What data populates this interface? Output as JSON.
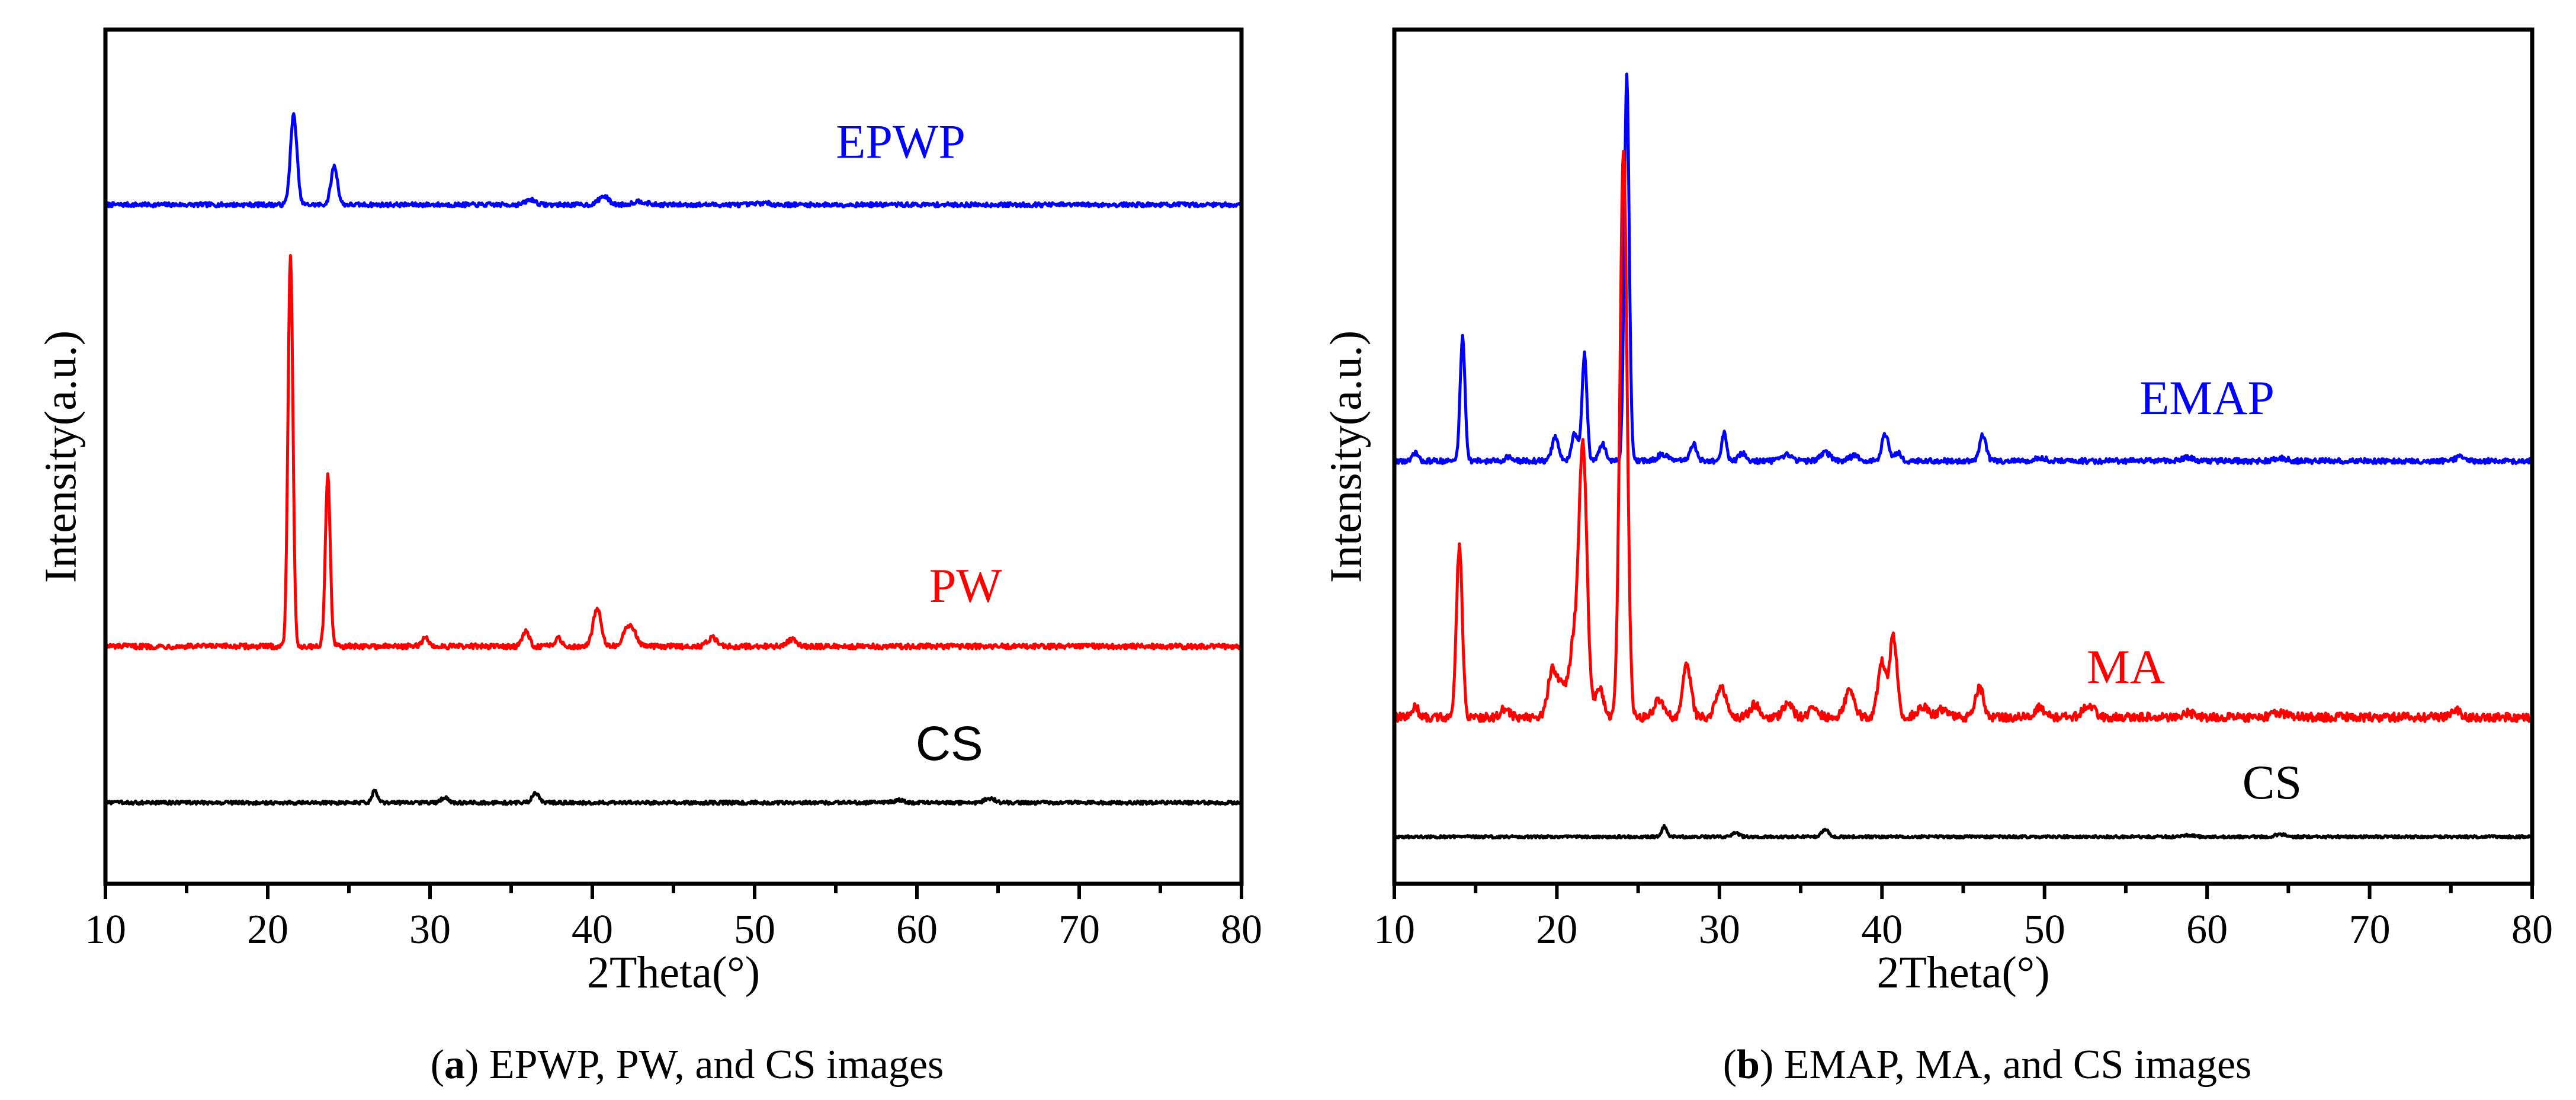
{
  "chart_data": [
    {
      "type": "line",
      "panel": "a",
      "caption_letter": "a",
      "caption_rest": " EPWP, PW, and CS images",
      "xlabel": "2Theta(°)",
      "ylabel": "Intensity(a.u.)",
      "xlim": [
        10,
        80
      ],
      "x_ticks": [
        "10",
        "20",
        "30",
        "40",
        "50",
        "60",
        "70",
        "80"
      ],
      "ylim": [
        0,
        100
      ],
      "y_ticks_shown": false,
      "series": [
        {
          "name": "EPWP",
          "color": "#0000ff",
          "label_font": "serif",
          "baseline": 79.5,
          "label_x": 59,
          "label_y": 85,
          "peaks": [
            [
              21.6,
              10.5,
              0.2
            ],
            [
              24.1,
              4.5,
              0.2
            ],
            [
              36.2,
              0.6,
              0.3
            ],
            [
              40.7,
              1.0,
              0.3
            ],
            [
              42.9,
              0.4,
              0.4
            ],
            [
              50.5,
              0.2,
              0.4
            ]
          ],
          "noise": 0.25
        },
        {
          "name": "PW",
          "color": "#ff0000",
          "label_font": "serif",
          "baseline": 27.8,
          "label_x": 63,
          "label_y": 33,
          "peaks": [
            [
              21.4,
              46,
              0.15
            ],
            [
              23.7,
              20,
              0.15
            ],
            [
              29.7,
              1.0,
              0.2
            ],
            [
              35.9,
              1.8,
              0.2
            ],
            [
              37.9,
              1.0,
              0.2
            ],
            [
              40.3,
              4.5,
              0.25
            ],
            [
              42.3,
              2.5,
              0.35
            ],
            [
              47.4,
              1.0,
              0.3
            ],
            [
              52.3,
              0.8,
              0.3
            ]
          ],
          "noise": 0.3
        },
        {
          "name": "CS",
          "color": "#000000",
          "label_font": "sans",
          "baseline": 9.5,
          "label_x": 62,
          "label_y": 14.5,
          "peaks": [
            [
              26.6,
              1.5,
              0.15
            ],
            [
              30.9,
              0.6,
              0.2
            ],
            [
              36.5,
              1.2,
              0.2
            ],
            [
              58.9,
              0.3,
              0.3
            ],
            [
              64.5,
              0.5,
              0.3
            ]
          ],
          "noise": 0.2
        }
      ]
    },
    {
      "type": "line",
      "panel": "b",
      "caption_letter": "b",
      "caption_rest": " EMAP, MA, and CS images",
      "xlabel": "2Theta(°)",
      "ylabel": "Intensity(a.u.)",
      "xlim": [
        10,
        80
      ],
      "x_ticks": [
        "10",
        "20",
        "30",
        "40",
        "50",
        "60",
        "70",
        "80"
      ],
      "ylim": [
        0,
        100
      ],
      "y_ticks_shown": false,
      "series": [
        {
          "name": "EMAP",
          "color": "#0000ff",
          "label_font": "serif",
          "baseline": 49.5,
          "label_x": 60,
          "label_y": 55,
          "peaks": [
            [
              11.3,
              1.0,
              0.15
            ],
            [
              14.2,
              14.5,
              0.15
            ],
            [
              17.0,
              0.5,
              0.2
            ],
            [
              19.9,
              2.8,
              0.2
            ],
            [
              21.1,
              3.2,
              0.2
            ],
            [
              21.7,
              12.5,
              0.15
            ],
            [
              22.8,
              2.0,
              0.2
            ],
            [
              24.3,
              45,
              0.15
            ],
            [
              26.5,
              0.8,
              0.3
            ],
            [
              28.4,
              2.0,
              0.2
            ],
            [
              30.3,
              3.3,
              0.15
            ],
            [
              31.4,
              0.9,
              0.2
            ],
            [
              34.2,
              0.7,
              0.3
            ],
            [
              36.5,
              1.0,
              0.3
            ],
            [
              38.3,
              0.6,
              0.3
            ],
            [
              40.2,
              3.2,
              0.2
            ],
            [
              41.0,
              1.0,
              0.2
            ],
            [
              46.2,
              3.0,
              0.2
            ],
            [
              49.8,
              0.4,
              0.3
            ],
            [
              58.8,
              0.4,
              0.4
            ],
            [
              64.5,
              0.3,
              0.4
            ],
            [
              75.6,
              0.5,
              0.3
            ]
          ],
          "noise": 0.3
        },
        {
          "name": "MA",
          "color": "#ff0000",
          "label_font": "serif",
          "baseline": 19.5,
          "label_x": 55,
          "label_y": 23.5,
          "peaks": [
            [
              11.3,
              1.5,
              0.15
            ],
            [
              14.0,
              20,
              0.18
            ],
            [
              16.8,
              1.0,
              0.25
            ],
            [
              19.7,
              5.5,
              0.25
            ],
            [
              20.3,
              4.0,
              0.25
            ],
            [
              21.0,
              8.0,
              0.25
            ],
            [
              21.6,
              32,
              0.25
            ],
            [
              22.6,
              3.5,
              0.25
            ],
            [
              24.1,
              66,
              0.22
            ],
            [
              26.3,
              2.0,
              0.3
            ],
            [
              28.0,
              6.0,
              0.25
            ],
            [
              30.1,
              3.5,
              0.3
            ],
            [
              32.2,
              1.5,
              0.3
            ],
            [
              34.2,
              1.5,
              0.3
            ],
            [
              35.8,
              1.0,
              0.3
            ],
            [
              38.0,
              3.0,
              0.3
            ],
            [
              40.0,
              6.5,
              0.25
            ],
            [
              40.7,
              9.5,
              0.22
            ],
            [
              42.5,
              1.2,
              0.35
            ],
            [
              43.8,
              1.0,
              0.35
            ],
            [
              46.0,
              3.5,
              0.25
            ],
            [
              49.7,
              1.2,
              0.3
            ],
            [
              52.7,
              1.5,
              0.35
            ],
            [
              58.8,
              0.5,
              0.4
            ],
            [
              64.5,
              0.5,
              0.4
            ],
            [
              75.3,
              0.8,
              0.3
            ]
          ],
          "noise": 0.5
        },
        {
          "name": "CS",
          "color": "#000000",
          "label_font": "serif",
          "baseline": 5.5,
          "label_x": 64,
          "label_y": 10,
          "peaks": [
            [
              26.6,
              1.2,
              0.15
            ],
            [
              31.0,
              0.5,
              0.2
            ],
            [
              36.5,
              0.9,
              0.2
            ],
            [
              58.9,
              0.2,
              0.3
            ],
            [
              64.5,
              0.3,
              0.3
            ]
          ],
          "noise": 0.15
        }
      ]
    }
  ]
}
